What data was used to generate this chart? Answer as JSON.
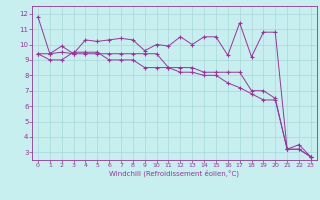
{
  "bg_color": "#c8efef",
  "grid_color": "#a8d8d8",
  "line_color": "#993399",
  "xlim": [
    -0.5,
    23.5
  ],
  "ylim": [
    2.5,
    12.5
  ],
  "xticks": [
    0,
    1,
    2,
    3,
    4,
    5,
    6,
    7,
    8,
    9,
    10,
    11,
    12,
    13,
    14,
    15,
    16,
    17,
    18,
    19,
    20,
    21,
    22,
    23
  ],
  "yticks": [
    3,
    4,
    5,
    6,
    7,
    8,
    9,
    10,
    11,
    12
  ],
  "xlabel": "Windchill (Refroidissement éolien,°C)",
  "series": [
    [
      11.8,
      9.4,
      9.9,
      9.4,
      10.3,
      10.2,
      10.3,
      10.4,
      10.3,
      9.6,
      10.0,
      9.9,
      10.5,
      10.0,
      10.5,
      10.5,
      9.3,
      11.4,
      9.2,
      10.8,
      10.8,
      3.2,
      3.5,
      2.7
    ],
    [
      9.4,
      9.4,
      9.5,
      9.4,
      9.4,
      9.4,
      9.4,
      9.4,
      9.4,
      9.4,
      9.4,
      8.5,
      8.5,
      8.5,
      8.2,
      8.2,
      8.2,
      8.2,
      7.0,
      7.0,
      6.5,
      3.2,
      3.2,
      2.7
    ],
    [
      9.4,
      9.0,
      9.0,
      9.5,
      9.5,
      9.5,
      9.0,
      9.0,
      9.0,
      8.5,
      8.5,
      8.5,
      8.2,
      8.2,
      8.0,
      8.0,
      7.5,
      7.2,
      6.8,
      6.4,
      6.4,
      3.2,
      3.2,
      2.7
    ]
  ]
}
